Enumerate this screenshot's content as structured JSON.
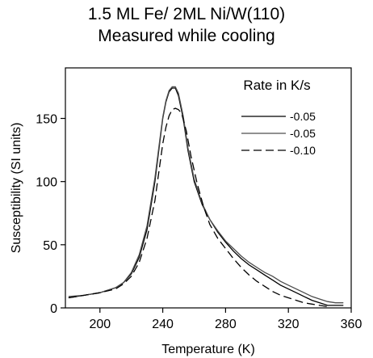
{
  "chart_data": {
    "type": "line",
    "title": "1.5 ML Fe/ 2ML Ni/W(110)",
    "subtitle": "Measured while cooling",
    "xlabel": "Temperature (K)",
    "ylabel": "Susceptibility (SI units)",
    "xlim": [
      178,
      360
    ],
    "ylim": [
      0,
      190
    ],
    "xticks": [
      200,
      240,
      280,
      320,
      360
    ],
    "yticks": [
      0,
      50,
      100,
      150
    ],
    "grid": false,
    "legend": {
      "title": "Rate in K/s",
      "position": "top-right"
    },
    "series": [
      {
        "name": "-0.05",
        "style": "solid",
        "color": "#000000",
        "points": [
          [
            180,
            8
          ],
          [
            190,
            10
          ],
          [
            200,
            12
          ],
          [
            210,
            16
          ],
          [
            215,
            20
          ],
          [
            220,
            27
          ],
          [
            225,
            40
          ],
          [
            230,
            62
          ],
          [
            235,
            100
          ],
          [
            238,
            130
          ],
          [
            240,
            150
          ],
          [
            242,
            163
          ],
          [
            244,
            171
          ],
          [
            246,
            174
          ],
          [
            248,
            174
          ],
          [
            250,
            168
          ],
          [
            253,
            150
          ],
          [
            256,
            125
          ],
          [
            260,
            100
          ],
          [
            265,
            82
          ],
          [
            270,
            70
          ],
          [
            275,
            60
          ],
          [
            280,
            52
          ],
          [
            285,
            45
          ],
          [
            290,
            39
          ],
          [
            295,
            34
          ],
          [
            300,
            30
          ],
          [
            305,
            26
          ],
          [
            310,
            22
          ],
          [
            315,
            18
          ],
          [
            320,
            15
          ],
          [
            325,
            12
          ],
          [
            330,
            9
          ],
          [
            335,
            6
          ],
          [
            340,
            4
          ],
          [
            345,
            2
          ],
          [
            350,
            2
          ],
          [
            355,
            2
          ]
        ]
      },
      {
        "name": "-0.05",
        "style": "solid",
        "color": "#4d4d4d",
        "points": [
          [
            180,
            9
          ],
          [
            190,
            10
          ],
          [
            200,
            12
          ],
          [
            210,
            16
          ],
          [
            215,
            20
          ],
          [
            220,
            28
          ],
          [
            225,
            42
          ],
          [
            230,
            65
          ],
          [
            235,
            103
          ],
          [
            238,
            132
          ],
          [
            240,
            151
          ],
          [
            242,
            164
          ],
          [
            244,
            172
          ],
          [
            246,
            175
          ],
          [
            248,
            175
          ],
          [
            250,
            170
          ],
          [
            253,
            152
          ],
          [
            256,
            127
          ],
          [
            260,
            102
          ],
          [
            265,
            83
          ],
          [
            270,
            70
          ],
          [
            275,
            61
          ],
          [
            280,
            53
          ],
          [
            285,
            47
          ],
          [
            290,
            41
          ],
          [
            295,
            36
          ],
          [
            300,
            32
          ],
          [
            305,
            28
          ],
          [
            310,
            25
          ],
          [
            315,
            21
          ],
          [
            320,
            18
          ],
          [
            325,
            15
          ],
          [
            330,
            12
          ],
          [
            335,
            9
          ],
          [
            340,
            7
          ],
          [
            345,
            5
          ],
          [
            350,
            4
          ],
          [
            355,
            4
          ]
        ]
      },
      {
        "name": "-0.10",
        "style": "dashed",
        "color": "#000000",
        "points": [
          [
            180,
            8
          ],
          [
            190,
            10
          ],
          [
            200,
            12
          ],
          [
            210,
            15
          ],
          [
            215,
            19
          ],
          [
            220,
            25
          ],
          [
            225,
            36
          ],
          [
            230,
            55
          ],
          [
            235,
            85
          ],
          [
            238,
            112
          ],
          [
            240,
            130
          ],
          [
            242,
            143
          ],
          [
            244,
            152
          ],
          [
            246,
            157
          ],
          [
            248,
            158
          ],
          [
            250,
            157
          ],
          [
            252,
            154
          ],
          [
            255,
            140
          ],
          [
            258,
            120
          ],
          [
            262,
            98
          ],
          [
            266,
            80
          ],
          [
            270,
            66
          ],
          [
            275,
            55
          ],
          [
            280,
            47
          ],
          [
            285,
            39
          ],
          [
            290,
            32
          ],
          [
            295,
            26
          ],
          [
            300,
            21
          ],
          [
            305,
            17
          ],
          [
            310,
            13
          ],
          [
            315,
            10
          ],
          [
            320,
            8
          ],
          [
            325,
            6
          ],
          [
            330,
            4
          ],
          [
            335,
            3
          ],
          [
            340,
            2
          ],
          [
            345,
            1
          ]
        ]
      }
    ]
  }
}
